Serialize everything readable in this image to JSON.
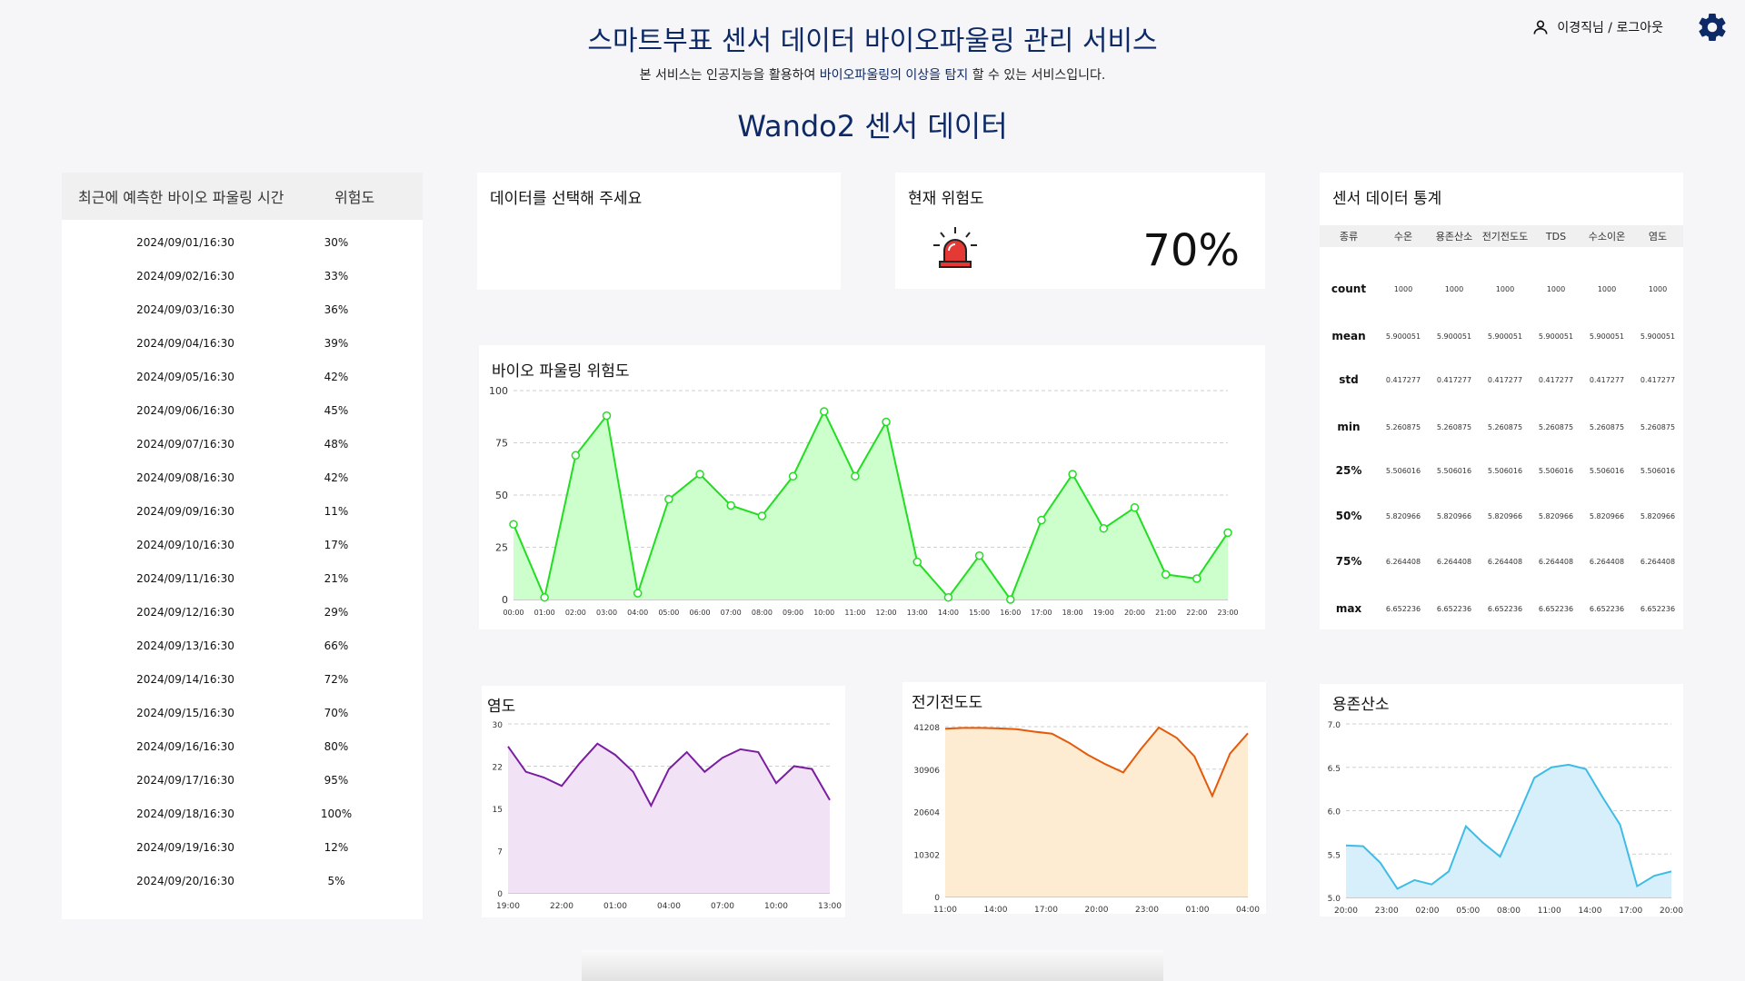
{
  "header": {
    "title": "스마트부표 센서 데이터 바이오파울링 관리 서비스",
    "subtitle_pre": "본 서비스는 인공지능을 활용하여 ",
    "subtitle_highlight": "바이오파울링의 이상을 탐지",
    "subtitle_post": " 할 수 있는 서비스입니다.",
    "page_title": "Wando2 센서 데이터",
    "user_text": "이경직님 / 로그아웃"
  },
  "recent_list": {
    "col_time": "최근에 예측한 바이오 파울링  시간",
    "col_risk": "위험도",
    "rows": [
      {
        "time": "2024/09/01/16:30",
        "risk": "30%"
      },
      {
        "time": "2024/09/02/16:30",
        "risk": "33%"
      },
      {
        "time": "2024/09/03/16:30",
        "risk": "36%"
      },
      {
        "time": "2024/09/04/16:30",
        "risk": "39%"
      },
      {
        "time": "2024/09/05/16:30",
        "risk": "42%"
      },
      {
        "time": "2024/09/06/16:30",
        "risk": "45%"
      },
      {
        "time": "2024/09/07/16:30",
        "risk": "48%"
      },
      {
        "time": "2024/09/08/16:30",
        "risk": "42%"
      },
      {
        "time": "2024/09/09/16:30",
        "risk": "11%"
      },
      {
        "time": "2024/09/10/16:30",
        "risk": "17%"
      },
      {
        "time": "2024/09/11/16:30",
        "risk": "21%"
      },
      {
        "time": "2024/09/12/16:30",
        "risk": "29%"
      },
      {
        "time": "2024/09/13/16:30",
        "risk": "66%"
      },
      {
        "time": "2024/09/14/16:30",
        "risk": "72%"
      },
      {
        "time": "2024/09/15/16:30",
        "risk": "70%"
      },
      {
        "time": "2024/09/16/16:30",
        "risk": "80%"
      },
      {
        "time": "2024/09/17/16:30",
        "risk": "95%"
      },
      {
        "time": "2024/09/18/16:30",
        "risk": "100%"
      },
      {
        "time": "2024/09/19/16:30",
        "risk": "12%"
      },
      {
        "time": "2024/09/20/16:30",
        "risk": "5%"
      }
    ]
  },
  "select_card": {
    "title": "데이터를 선택해 주세요"
  },
  "risk_card": {
    "title": "현재 위험도",
    "value": "70%",
    "icon": "siren-icon"
  },
  "stats": {
    "title": "센서 데이터  통계",
    "columns": [
      "종류",
      "수온",
      "용존산소",
      "전기전도도",
      "TDS",
      "수소이온",
      "염도"
    ],
    "rows": [
      {
        "label": "count",
        "values": [
          "1000",
          "1000",
          "1000",
          "1000",
          "1000",
          "1000"
        ]
      },
      {
        "label": "mean",
        "values": [
          "5.900051",
          "5.900051",
          "5.900051",
          "5.900051",
          "5.900051",
          "5.900051"
        ]
      },
      {
        "label": "std",
        "values": [
          "0.417277",
          "0.417277",
          "0.417277",
          "0.417277",
          "0.417277",
          "0.417277"
        ]
      },
      {
        "label": "min",
        "values": [
          "5.260875",
          "5.260875",
          "5.260875",
          "5.260875",
          "5.260875",
          "5.260875"
        ]
      },
      {
        "label": "25%",
        "values": [
          "5.506016",
          "5.506016",
          "5.506016",
          "5.506016",
          "5.506016",
          "5.506016"
        ]
      },
      {
        "label": "50%",
        "values": [
          "5.820966",
          "5.820966",
          "5.820966",
          "5.820966",
          "5.820966",
          "5.820966"
        ]
      },
      {
        "label": "75%",
        "values": [
          "6.264408",
          "6.264408",
          "6.264408",
          "6.264408",
          "6.264408",
          "6.264408"
        ]
      },
      {
        "label": "max",
        "values": [
          "6.652236",
          "6.652236",
          "6.652236",
          "6.652236",
          "6.652236",
          "6.652236"
        ]
      }
    ]
  },
  "chart_data": [
    {
      "id": "biofouling",
      "type": "area",
      "title": "바이오 파울링 위험도",
      "x": [
        "00:00",
        "01:00",
        "02:00",
        "03:00",
        "04:00",
        "05:00",
        "06:00",
        "07:00",
        "08:00",
        "09:00",
        "10:00",
        "11:00",
        "12:00",
        "13:00",
        "14:00",
        "15:00",
        "16:00",
        "17:00",
        "18:00",
        "19:00",
        "20:00",
        "21:00",
        "22:00",
        "23:00"
      ],
      "values": [
        36,
        1,
        69,
        88,
        3,
        48,
        60,
        45,
        40,
        59,
        90,
        59,
        85,
        18,
        1,
        21,
        0,
        38,
        60,
        34,
        44,
        12,
        10,
        32
      ],
      "yticks": [
        "0",
        "25",
        "50",
        "75",
        "100"
      ],
      "ylim": [
        0,
        100
      ],
      "markers": true,
      "color": "#22dd22",
      "fill": "#ccffcc"
    },
    {
      "id": "salinity",
      "type": "area",
      "title": "염도",
      "xticks": [
        "19:00",
        "22:00",
        "01:00",
        "04:00",
        "07:00",
        "10:00",
        "13:00"
      ],
      "values": [
        26,
        21.5,
        20.5,
        19,
        23,
        26.5,
        24.5,
        21.5,
        15.5,
        22,
        25,
        21.5,
        24,
        25.5,
        25,
        19.5,
        22.5,
        22,
        16.5
      ],
      "yticks": [
        "0",
        "7",
        "15",
        "22",
        "30"
      ],
      "ylim": [
        0,
        30
      ],
      "color": "#7a1ea1",
      "fill": "#f1e3f5"
    },
    {
      "id": "conductivity",
      "type": "area",
      "title": "전기전도도",
      "xticks": [
        "11:00",
        "14:00",
        "17:00",
        "20:00",
        "23:00",
        "01:00",
        "04:00"
      ],
      "values": [
        40700,
        40900,
        40900,
        40800,
        40600,
        40000,
        39500,
        37200,
        34400,
        32100,
        30100,
        35800,
        41000,
        38500,
        34000,
        24400,
        34700,
        39600
      ],
      "yticks": [
        "0",
        "10302",
        "20604",
        "30906",
        "41208"
      ],
      "ylim": [
        0,
        41208
      ],
      "color": "#e55a0a",
      "fill": "#fdebd2"
    },
    {
      "id": "dissolved_oxygen",
      "type": "area",
      "title": "용존산소",
      "xticks": [
        "20:00",
        "23:00",
        "02:00",
        "05:00",
        "08:00",
        "11:00",
        "14:00",
        "17:00",
        "20:00"
      ],
      "values": [
        5.6,
        5.59,
        5.4,
        5.1,
        5.2,
        5.15,
        5.3,
        5.82,
        5.63,
        5.47,
        5.92,
        6.38,
        6.5,
        6.53,
        6.48,
        6.15,
        5.84,
        5.13,
        5.25,
        5.3
      ],
      "yticks": [
        "5.0",
        "5.5",
        "6.0",
        "6.5",
        "7.0"
      ],
      "ylim": [
        5.0,
        7.0
      ],
      "color": "#3fbce6",
      "fill": "#d6effa"
    }
  ]
}
